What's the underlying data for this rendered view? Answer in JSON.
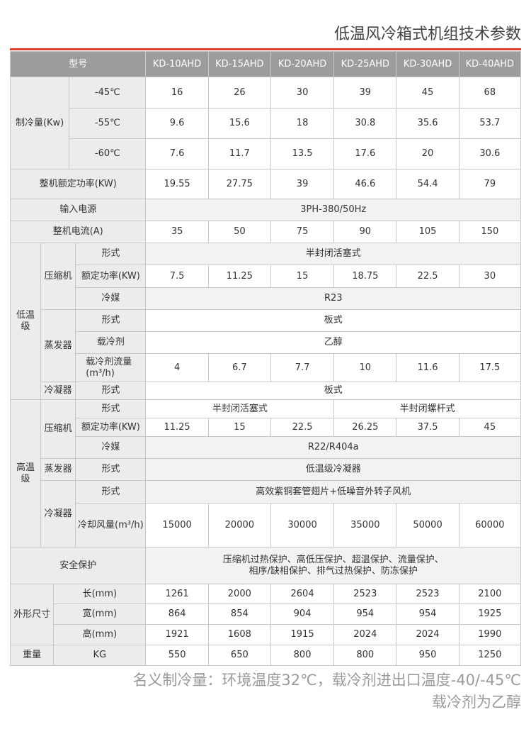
{
  "title": "低温风冷箱式机组技术参数",
  "table": {
    "model_label": "型号",
    "models": [
      "KD-10AHD",
      "KD-15AHD",
      "KD-20AHD",
      "KD-25AHD",
      "KD-30AHD",
      "KD-40AHD"
    ],
    "cooling_capacity": {
      "label": "制冷量(Kw)",
      "rows": [
        {
          "condition": "-45℃",
          "values": [
            16,
            26,
            30,
            39,
            45,
            68
          ]
        },
        {
          "condition": "-55℃",
          "values": [
            9.6,
            15.6,
            18,
            30.8,
            35.6,
            53.7
          ]
        },
        {
          "condition": "-60℃",
          "values": [
            7.6,
            11.7,
            13.5,
            17.6,
            20,
            30.6
          ]
        }
      ]
    },
    "rated_power": {
      "label": "整机额定功率(KW)",
      "values": [
        19.55,
        27.75,
        39,
        46.6,
        54.4,
        79
      ]
    },
    "power_supply": {
      "label": "输入电源",
      "value": "3PH-380/50Hz"
    },
    "current": {
      "label": "整机电流(A)",
      "values": [
        35,
        50,
        75,
        90,
        105,
        150
      ]
    },
    "low_stage": {
      "label": "低温级",
      "compressor": {
        "label": "压缩机",
        "type_label": "形式",
        "type": "半封闭活塞式",
        "power_label": "额定功率(KW)",
        "power": [
          7.5,
          11.25,
          15,
          18.75,
          22.5,
          30
        ],
        "refrigerant_label": "冷媒",
        "refrigerant": "R23"
      },
      "evaporator": {
        "label": "蒸发器",
        "type_label": "形式",
        "type": "板式",
        "coolant_label": "载冷剂",
        "coolant": "乙醇",
        "flow_label": [
          "载冷剂流量",
          "(m³/h)"
        ],
        "flow": [
          4,
          6.7,
          7.7,
          10,
          11.6,
          17.5
        ]
      },
      "condenser": {
        "label": "冷凝器",
        "type_label": "形式",
        "type": "板式"
      }
    },
    "high_stage": {
      "label": "高温级",
      "compressor": {
        "label": "压缩机",
        "type_label": "形式",
        "types": [
          "半封闭活塞式",
          "半封闭螺杆式"
        ],
        "power_label": "额定功率(KW)",
        "power": [
          11.25,
          15,
          22.5,
          26.25,
          37.5,
          45
        ],
        "refrigerant_label": "冷媒",
        "refrigerant": "R22/R404a"
      },
      "evaporator": {
        "label": "蒸发器",
        "type_label": "形式",
        "type": "低温级冷凝器"
      },
      "condenser": {
        "label": "冷凝器",
        "type_label": "形式",
        "type": "高效紫铜套管翅片+低噪音外转子风机",
        "airflow_label": "冷却风量(m³/h)",
        "airflow": [
          15000,
          20000,
          30000,
          35000,
          50000,
          60000
        ]
      }
    },
    "protection": {
      "label": "安全保护",
      "lines": [
        "压缩机过热保护、高低压保护、超温保护、流量保护、",
        "相序/缺相保护、排气过热保护、防冻保护"
      ]
    },
    "dimensions": {
      "label": "外形尺寸",
      "rows": [
        {
          "label": "长(mm)",
          "values": [
            1261,
            2000,
            2604,
            2523,
            2523,
            2100
          ]
        },
        {
          "label": "宽(mm)",
          "values": [
            864,
            854,
            904,
            954,
            954,
            1925
          ]
        },
        {
          "label": "高(mm)",
          "values": [
            1921,
            1608,
            1915,
            2024,
            2024,
            1990
          ]
        }
      ]
    },
    "weight": {
      "label": "重量",
      "unit": "KG",
      "values": [
        550,
        650,
        800,
        800,
        950,
        1250
      ]
    }
  },
  "notes": [
    "名义制冷量：环境温度32℃，载冷剂进出口温度-40/-45℃",
    "载冷剂为乙醇"
  ]
}
